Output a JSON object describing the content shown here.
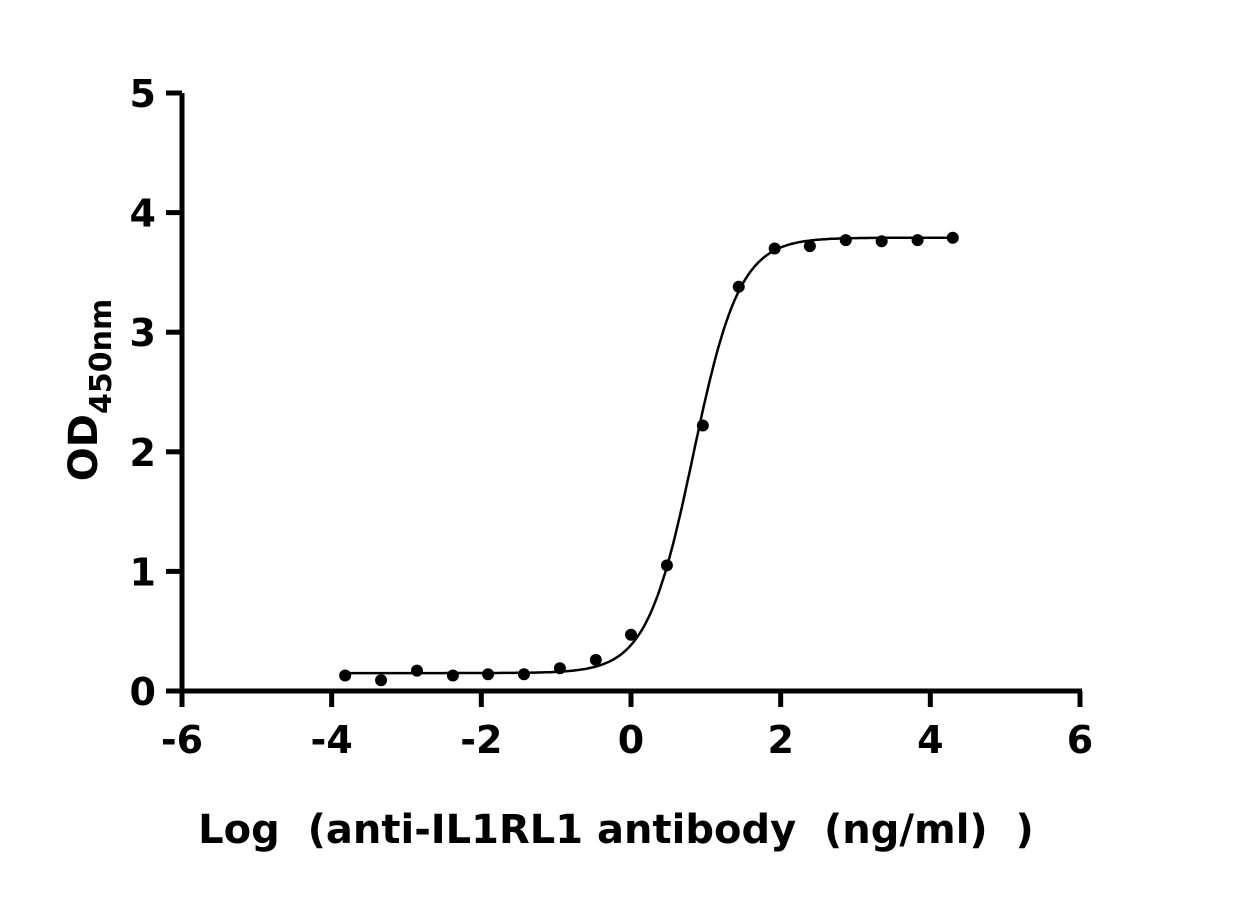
{
  "chart_data": {
    "type": "scatter",
    "title": "",
    "xlabel": "Log  (anti-IL1RL1 antibody  (ng/ml)  )",
    "ylabel_main": "OD",
    "ylabel_sub": "450nm",
    "xlim": [
      -6,
      6
    ],
    "ylim": [
      0,
      5
    ],
    "xticks": [
      "-6",
      "-4",
      "-2",
      "0",
      "2",
      "4",
      "6"
    ],
    "yticks": [
      "0",
      "1",
      "2",
      "3",
      "4",
      "5"
    ],
    "grid": false,
    "fit_curve": "sigmoidal 4PL fit line",
    "marker_color": "#000000",
    "x": [
      -3.82,
      -3.34,
      -2.86,
      -2.38,
      -1.91,
      -1.43,
      -0.95,
      -0.47,
      0.0,
      0.48,
      0.96,
      1.44,
      1.92,
      2.39,
      2.87,
      3.35,
      3.83,
      4.3
    ],
    "y": [
      0.13,
      0.09,
      0.17,
      0.13,
      0.14,
      0.14,
      0.19,
      0.26,
      0.47,
      1.05,
      2.22,
      3.38,
      3.7,
      3.72,
      3.77,
      3.76,
      3.77,
      3.79
    ]
  }
}
